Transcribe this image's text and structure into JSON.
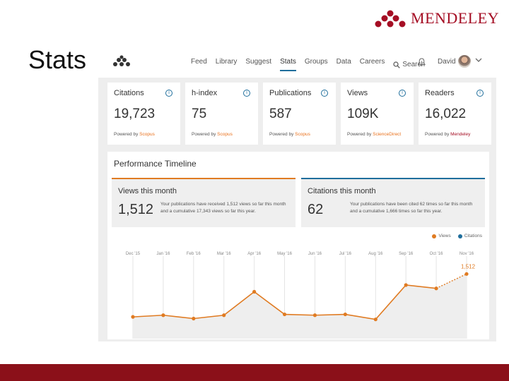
{
  "slide_title": "Stats",
  "brand": {
    "name": "MENDELEY",
    "color": "#a50e24"
  },
  "nav": {
    "items": [
      "Feed",
      "Library",
      "Suggest",
      "Stats",
      "Groups",
      "Data",
      "Careers"
    ],
    "active": "Stats",
    "search_label": "Search",
    "user_name": "David"
  },
  "stats": [
    {
      "title": "Citations",
      "value": "19,723",
      "powered_prefix": "Powered by",
      "source": "Scopus"
    },
    {
      "title": "h-index",
      "value": "75",
      "powered_prefix": "Powered by",
      "source": "Scopus"
    },
    {
      "title": "Publications",
      "value": "587",
      "powered_prefix": "Powered by",
      "source": "Scopus"
    },
    {
      "title": "Views",
      "value": "109K",
      "powered_prefix": "Powered by",
      "source": "ScienceDirect"
    },
    {
      "title": "Readers",
      "value": "16,022",
      "powered_prefix": "Powered by",
      "source": "Mendeley"
    }
  ],
  "performance": {
    "title": "Performance Timeline",
    "views": {
      "heading": "Views this month",
      "value": "1,512",
      "description": "Your publications have received 1,512 views so far this month and a cumulative 17,343 views so far this year."
    },
    "citations": {
      "heading": "Citations this month",
      "value": "62",
      "description": "Your publications have been cited 62 times so far this month and a cumulative 1,666 times so far this year."
    },
    "legend": [
      {
        "label": "Views",
        "color": "#e07b22"
      },
      {
        "label": "Citations",
        "color": "#1f6e9c"
      }
    ]
  },
  "chart_data": {
    "type": "line",
    "x": [
      "Dec '15",
      "Jan '16",
      "Feb '16",
      "Mar '16",
      "Apr '16",
      "May '16",
      "Jun '16",
      "Jul '16",
      "Aug '16",
      "Sep '16",
      "Oct '16",
      "Nov '16"
    ],
    "series": [
      {
        "name": "Views",
        "values": [
          1000,
          1020,
          980,
          1020,
          1300,
          1030,
          1020,
          1030,
          970,
          1380,
          1340,
          1512
        ],
        "color": "#e07b22"
      }
    ],
    "annotation": "1,512",
    "ylim": [
      0,
      1600
    ],
    "grid": "vertical"
  }
}
